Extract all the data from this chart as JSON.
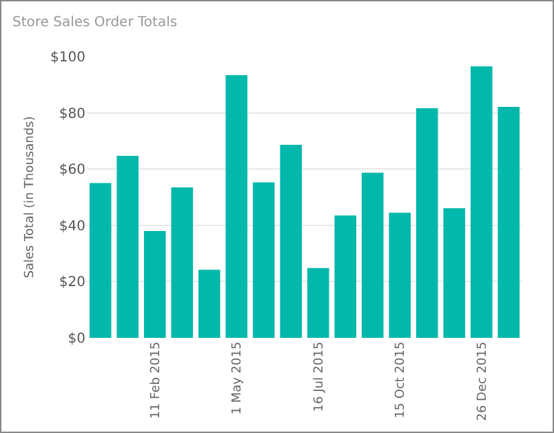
{
  "chart_data": {
    "type": "bar",
    "title": "Store Sales Order Totals",
    "ylabel": "Sales Total (in Thousands)",
    "categories": [
      null,
      null,
      "11 Feb 2015",
      null,
      null,
      "1 May 2015",
      null,
      null,
      "16 Jul 2015",
      null,
      null,
      "15 Oct 2015",
      null,
      null,
      "26 Dec 2015",
      null
    ],
    "values": [
      55,
      64.7,
      38,
      53.5,
      24.2,
      93.4,
      55.3,
      68.6,
      24.8,
      43.5,
      58.7,
      44.5,
      81.6,
      46.1,
      96.5,
      82.1
    ],
    "color": "#01b8aa",
    "ylim": [
      0,
      100
    ],
    "yticks": [
      {
        "value": 0,
        "label": "$0"
      },
      {
        "value": 20,
        "label": "$20"
      },
      {
        "value": 40,
        "label": "$40"
      },
      {
        "value": 60,
        "label": "$60"
      },
      {
        "value": 80,
        "label": "$80"
      },
      {
        "value": 100,
        "label": "$100"
      }
    ],
    "grid": "y"
  }
}
